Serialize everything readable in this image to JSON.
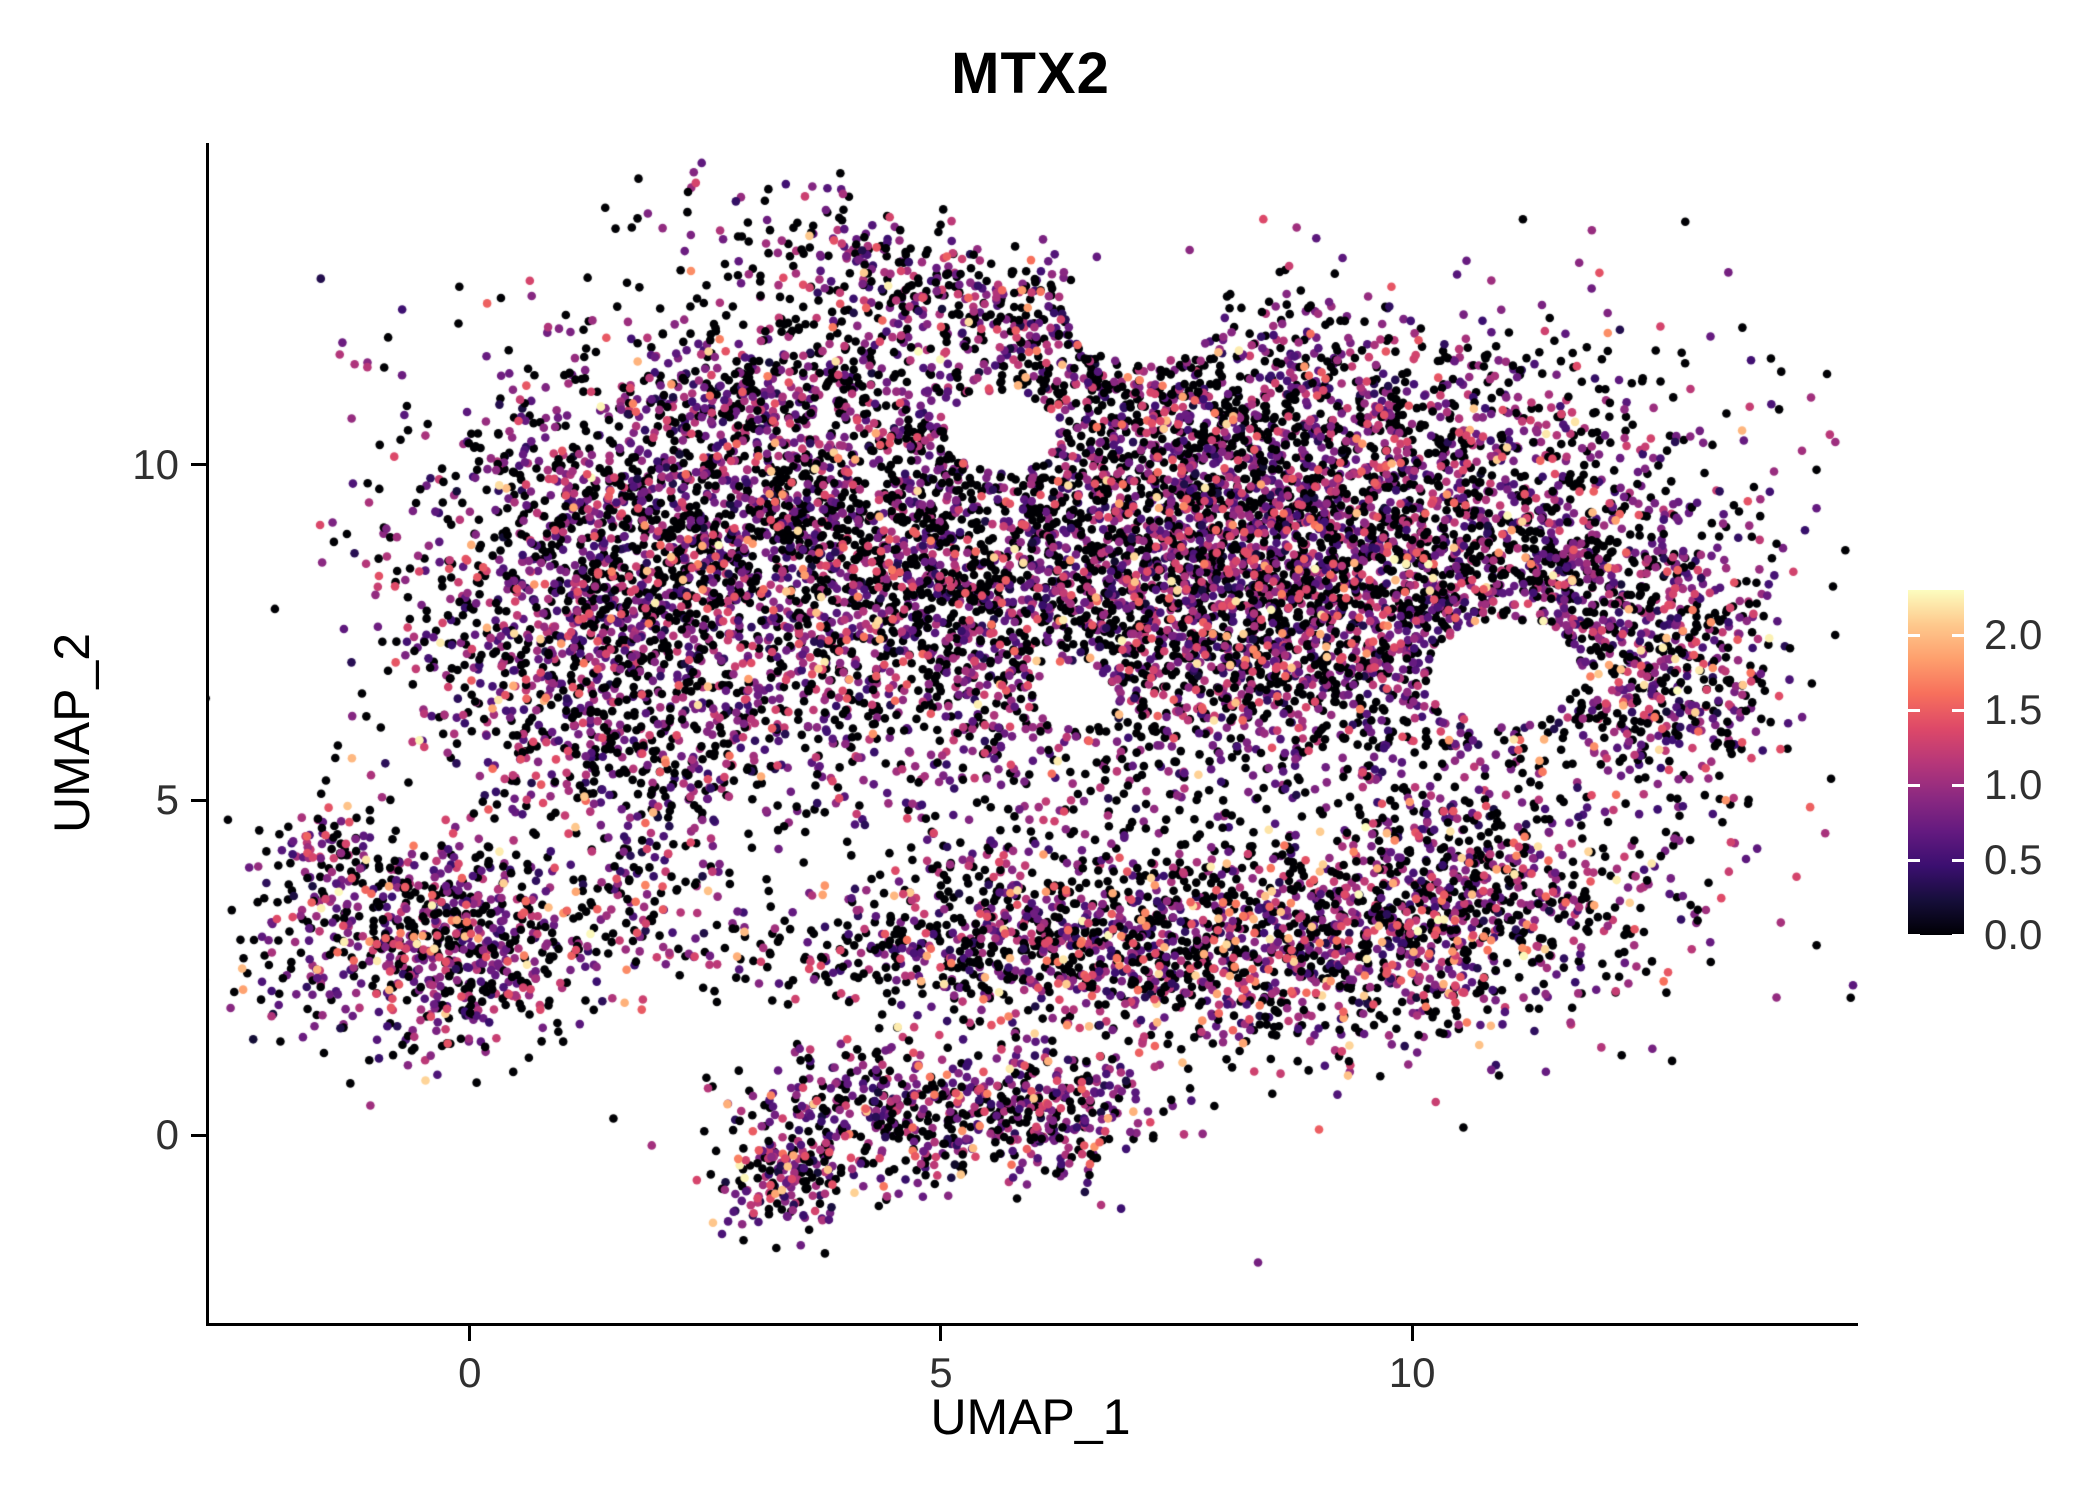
{
  "chart_data": {
    "type": "scatter",
    "title": "MTX2",
    "xlabel": "UMAP_1",
    "ylabel": "UMAP_2",
    "x_ticks": [
      "0",
      "5",
      "10"
    ],
    "x_tick_values": [
      0,
      5,
      10
    ],
    "y_ticks": [
      "0",
      "5",
      "10"
    ],
    "y_tick_values": [
      0,
      5,
      10
    ],
    "xlim": [
      -2.8,
      14.7
    ],
    "ylim": [
      -2.8,
      14.8
    ],
    "grid": false,
    "legend_position": "right",
    "colorbar": {
      "ticks": [
        "0.0",
        "0.5",
        "1.0",
        "1.5",
        "2.0"
      ],
      "tick_values": [
        0,
        0.5,
        1.0,
        1.5,
        2.0
      ],
      "vmin": 0,
      "vmax": 2.3,
      "colormap": "magma",
      "stops": [
        [
          0.0,
          "#000004"
        ],
        [
          0.1,
          "#160e3a"
        ],
        [
          0.2,
          "#3b0f70"
        ],
        [
          0.3,
          "#641a80"
        ],
        [
          0.4,
          "#8c2981"
        ],
        [
          0.5,
          "#b73779"
        ],
        [
          0.6,
          "#de4968"
        ],
        [
          0.7,
          "#f7705c"
        ],
        [
          0.8,
          "#fe9f6d"
        ],
        [
          0.9,
          "#fec98d"
        ],
        [
          1.0,
          "#fcfdbf"
        ]
      ]
    },
    "points": {
      "description": "UMAP embedding of ~15000 cells colored by MTX2 expression (0 = black, high = cream). Clusters are gaussian blobs in data coordinates.",
      "seed": 42,
      "radius": 4.3,
      "cluster_fields": [
        "cx",
        "cy",
        "sx",
        "sy",
        "n",
        "p_zero",
        "p_high",
        "rot"
      ],
      "clusters": [
        [
          2.8,
          8.9,
          1.7,
          1.6,
          2300,
          0.45,
          0.05,
          0
        ],
        [
          6.0,
          8.1,
          1.9,
          1.7,
          1900,
          0.48,
          0.05,
          0
        ],
        [
          8.8,
          8.4,
          1.5,
          1.5,
          2600,
          0.42,
          0.06,
          0
        ],
        [
          11.4,
          7.9,
          1.1,
          1.6,
          1100,
          0.45,
          0.06,
          0
        ],
        [
          12.9,
          7.0,
          0.5,
          1.1,
          320,
          0.4,
          0.1,
          0
        ],
        [
          7.6,
          10.9,
          2.2,
          0.85,
          950,
          0.45,
          0.05,
          0
        ],
        [
          5.2,
          12.5,
          1.5,
          0.45,
          430,
          0.42,
          0.07,
          -0.45
        ],
        [
          3.0,
          11.2,
          0.55,
          0.55,
          140,
          0.45,
          0.05,
          0
        ],
        [
          0.9,
          7.7,
          0.75,
          1.4,
          520,
          0.42,
          0.08,
          0
        ],
        [
          1.9,
          5.7,
          0.9,
          0.55,
          240,
          0.45,
          0.06,
          0
        ],
        [
          6.8,
          7.6,
          3.9,
          2.7,
          380,
          0.55,
          0.05,
          0
        ],
        [
          -0.4,
          2.9,
          0.95,
          0.8,
          820,
          0.42,
          0.07,
          0
        ],
        [
          -1.55,
          4.3,
          0.25,
          0.45,
          70,
          0.4,
          0.08,
          0
        ],
        [
          1.9,
          3.7,
          0.5,
          0.75,
          110,
          0.5,
          0.06,
          0
        ],
        [
          8.4,
          2.8,
          1.9,
          0.8,
          1450,
          0.4,
          0.15,
          0
        ],
        [
          10.6,
          3.7,
          0.75,
          0.75,
          380,
          0.4,
          0.15,
          0
        ],
        [
          5.7,
          2.9,
          1.0,
          0.5,
          280,
          0.5,
          0.08,
          0
        ],
        [
          4.1,
          2.6,
          0.8,
          0.3,
          110,
          0.55,
          0.05,
          0
        ],
        [
          7.5,
          4.0,
          2.6,
          0.5,
          140,
          0.55,
          0.06,
          0
        ],
        [
          4.9,
          0.3,
          1.0,
          0.55,
          520,
          0.42,
          0.06,
          0
        ],
        [
          3.35,
          -0.6,
          0.38,
          0.55,
          190,
          0.38,
          0.1,
          0
        ],
        [
          6.3,
          0.45,
          0.45,
          0.5,
          140,
          0.45,
          0.06,
          0
        ]
      ],
      "hole_fields": [
        "x",
        "y",
        "r"
      ],
      "holes": [
        [
          10.95,
          6.9,
          0.8
        ],
        [
          5.6,
          10.5,
          0.6
        ],
        [
          7.1,
          12.3,
          0.8
        ],
        [
          6.4,
          6.5,
          0.45
        ]
      ],
      "value_model": {
        "zero_value": 0,
        "mid_base": 0.15,
        "mid_span_a": 0.9,
        "mid_span_b": 0.55,
        "high_min": 1.35,
        "high_span": 0.95,
        "clamp_max": 2.3
      }
    }
  }
}
